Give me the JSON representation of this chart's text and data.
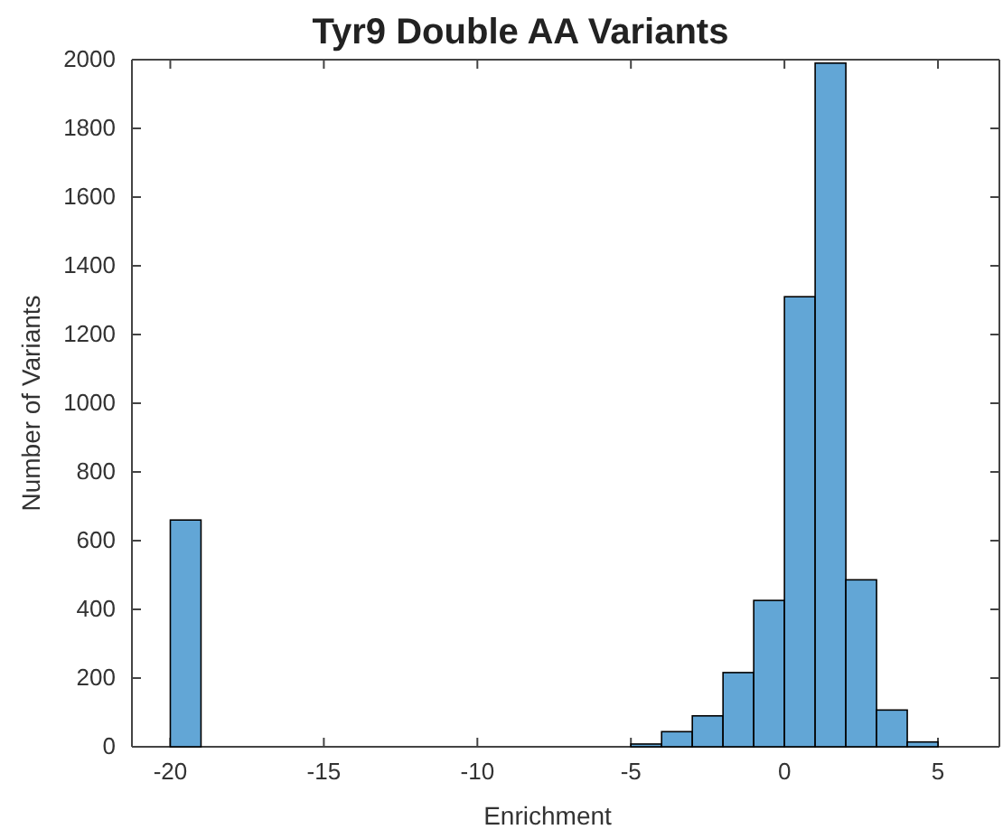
{
  "chart_data": {
    "type": "histogram",
    "title": "Tyr9 Double AA Variants",
    "xlabel": "Enrichment",
    "ylabel": "Number of Variants",
    "bins": [
      -20,
      -19,
      -18,
      -17,
      -16,
      -15,
      -14,
      -13,
      -12,
      -11,
      -10,
      -9,
      -8,
      -7,
      -6,
      -5,
      -4,
      -3,
      -2,
      -1,
      0,
      1,
      2,
      3,
      4,
      5
    ],
    "values": [
      660,
      0,
      0,
      0,
      0,
      0,
      0,
      0,
      0,
      0,
      0,
      0,
      0,
      0,
      0,
      8,
      44,
      90,
      216,
      426,
      1310,
      1990,
      486,
      107,
      14
    ],
    "color": "#62a6d6",
    "xlim": [
      -21.25,
      7
    ],
    "xticks": [
      -20,
      -15,
      -10,
      -5,
      0,
      5
    ],
    "ylim": [
      0,
      2000
    ],
    "yticks": [
      0,
      200,
      400,
      600,
      800,
      1000,
      1200,
      1400,
      1600,
      1800,
      2000
    ],
    "grid": false
  }
}
